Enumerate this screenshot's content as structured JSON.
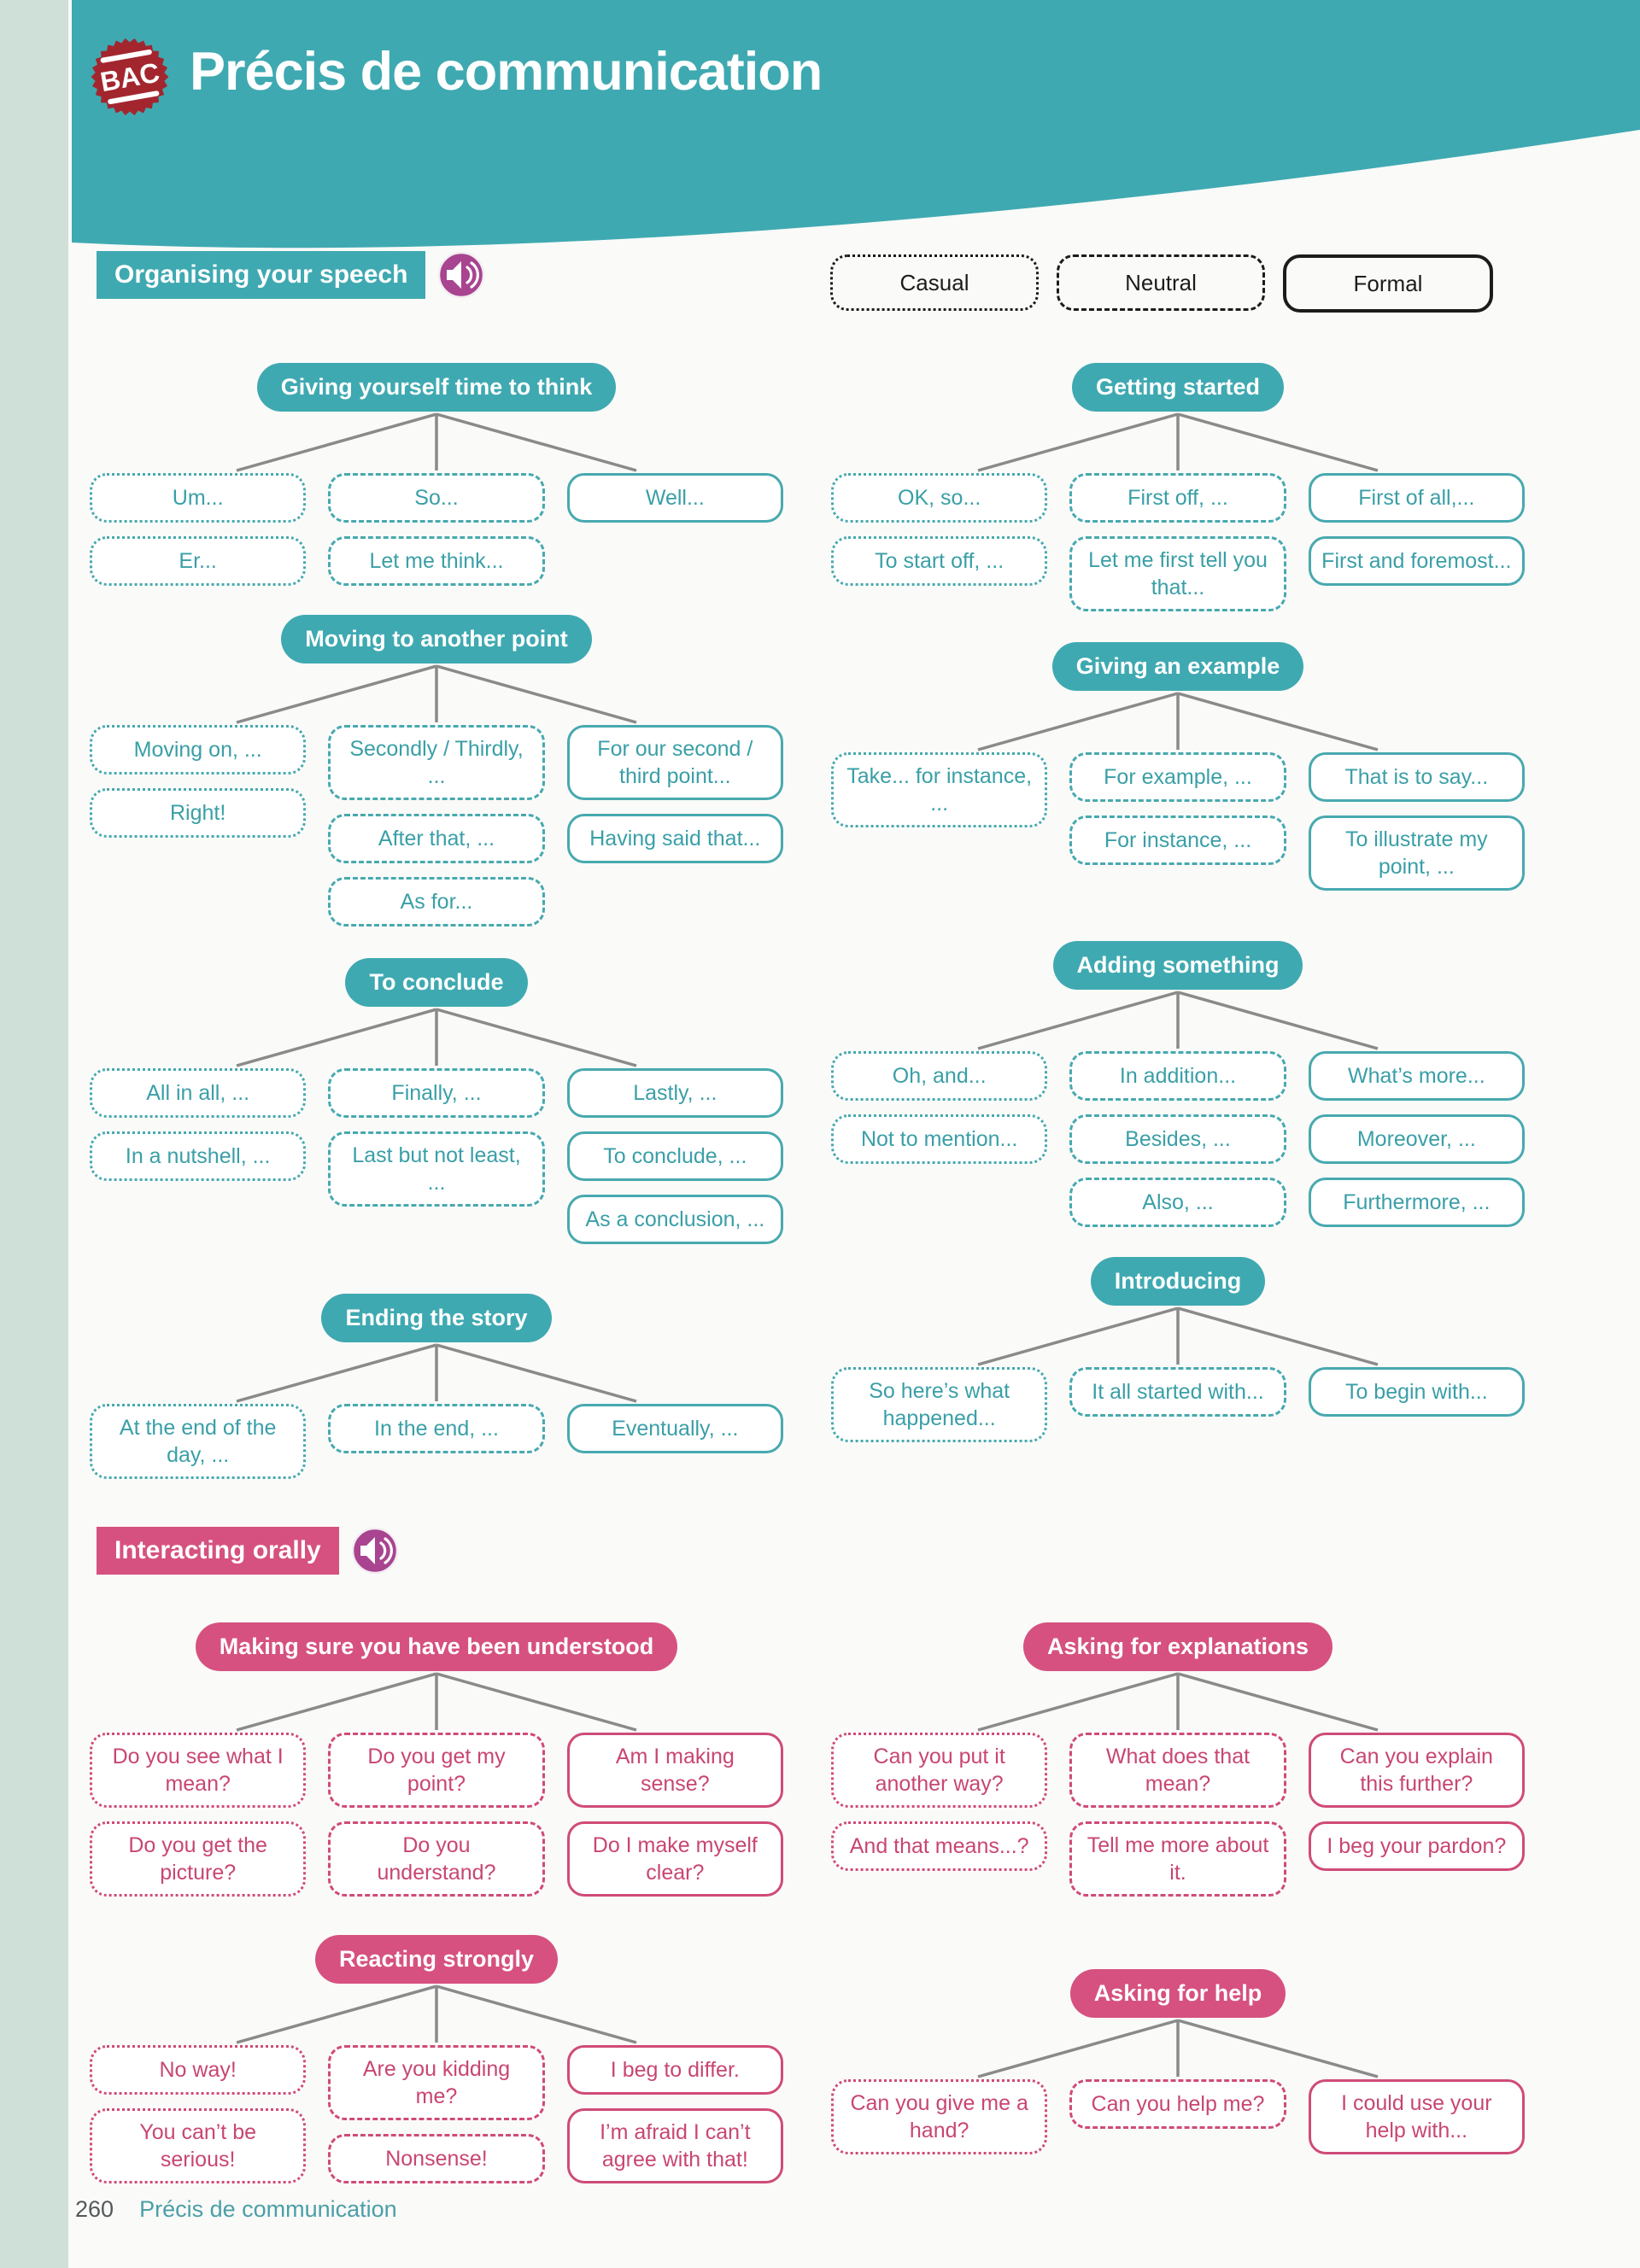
{
  "badge": "BAC",
  "page_title": "Précis de communication",
  "legend": {
    "casual": "Casual",
    "neutral": "Neutral",
    "formal": "Formal"
  },
  "footer": {
    "page_number": "260",
    "label": "Précis de communication"
  },
  "colors": {
    "teal": "#3fa9b1",
    "pink": "#d6517f",
    "badge_red": "#a3262f",
    "speaker_purple": "#a84490",
    "mint_strip": "#cfe0d8",
    "connector_gray": "#8a8a8a"
  },
  "sections": [
    {
      "title": "Organising your speech",
      "icon": "speaker-icon",
      "trees": [
        {
          "title": "Giving yourself time to think",
          "casual": [
            "Um...",
            "Er..."
          ],
          "neutral": [
            "So...",
            "Let me think..."
          ],
          "formal": [
            "Well..."
          ]
        },
        {
          "title": "Getting started",
          "casual": [
            "OK, so...",
            "To start off, ..."
          ],
          "neutral": [
            "First off, ...",
            "Let me first tell you that..."
          ],
          "formal": [
            "First of all,...",
            "First and foremost..."
          ]
        },
        {
          "title": "Moving to another point",
          "casual": [
            "Moving on, ...",
            "Right!"
          ],
          "neutral": [
            "Secondly / Thirdly, ...",
            "After that, ...",
            "As for..."
          ],
          "formal": [
            "For our second / third point...",
            "Having said that..."
          ]
        },
        {
          "title": "Giving an example",
          "casual": [
            "Take... for instance, ..."
          ],
          "neutral": [
            "For example, ...",
            "For instance, ..."
          ],
          "formal": [
            "That is to say...",
            "To illustrate my point, ..."
          ]
        },
        {
          "title": "To conclude",
          "casual": [
            "All in all, ...",
            "In a nutshell, ..."
          ],
          "neutral": [
            "Finally, ...",
            "Last but not least, ..."
          ],
          "formal": [
            "Lastly, ...",
            "To conclude, ...",
            "As a conclusion, ..."
          ]
        },
        {
          "title": "Adding something",
          "casual": [
            "Oh, and...",
            "Not to mention..."
          ],
          "neutral": [
            "In addition...",
            "Besides, ...",
            "Also, ..."
          ],
          "formal": [
            "What’s more...",
            "Moreover, ...",
            "Furthermore, ..."
          ]
        },
        {
          "title": "Ending the story",
          "casual": [
            "At the end of the day, ..."
          ],
          "neutral": [
            "In the end, ..."
          ],
          "formal": [
            "Eventually, ..."
          ]
        },
        {
          "title": "Introducing",
          "casual": [
            "So here’s what happened..."
          ],
          "neutral": [
            "It all started with..."
          ],
          "formal": [
            "To begin with..."
          ]
        }
      ]
    },
    {
      "title": "Interacting orally",
      "icon": "speaker-icon",
      "trees": [
        {
          "title": "Making sure you have been understood",
          "casual": [
            "Do you see what I mean?",
            "Do you get the picture?"
          ],
          "neutral": [
            "Do you get my point?",
            "Do you understand?"
          ],
          "formal": [
            "Am I making sense?",
            "Do I make myself clear?"
          ]
        },
        {
          "title": "Asking for explanations",
          "casual": [
            "Can you put it another way?",
            "And that means...?"
          ],
          "neutral": [
            "What does that mean?",
            "Tell me more about it."
          ],
          "formal": [
            "Can you explain this further?",
            "I beg your pardon?"
          ]
        },
        {
          "title": "Reacting strongly",
          "casual": [
            "No way!",
            "You can’t be serious!"
          ],
          "neutral": [
            "Are you kidding me?",
            "Nonsense!"
          ],
          "formal": [
            "I beg to differ.",
            "I’m afraid I can’t agree with that!"
          ]
        },
        {
          "title": "Asking for help",
          "casual": [
            "Can you give me a hand?"
          ],
          "neutral": [
            "Can you help me?"
          ],
          "formal": [
            "I could use your help with..."
          ]
        }
      ]
    }
  ]
}
